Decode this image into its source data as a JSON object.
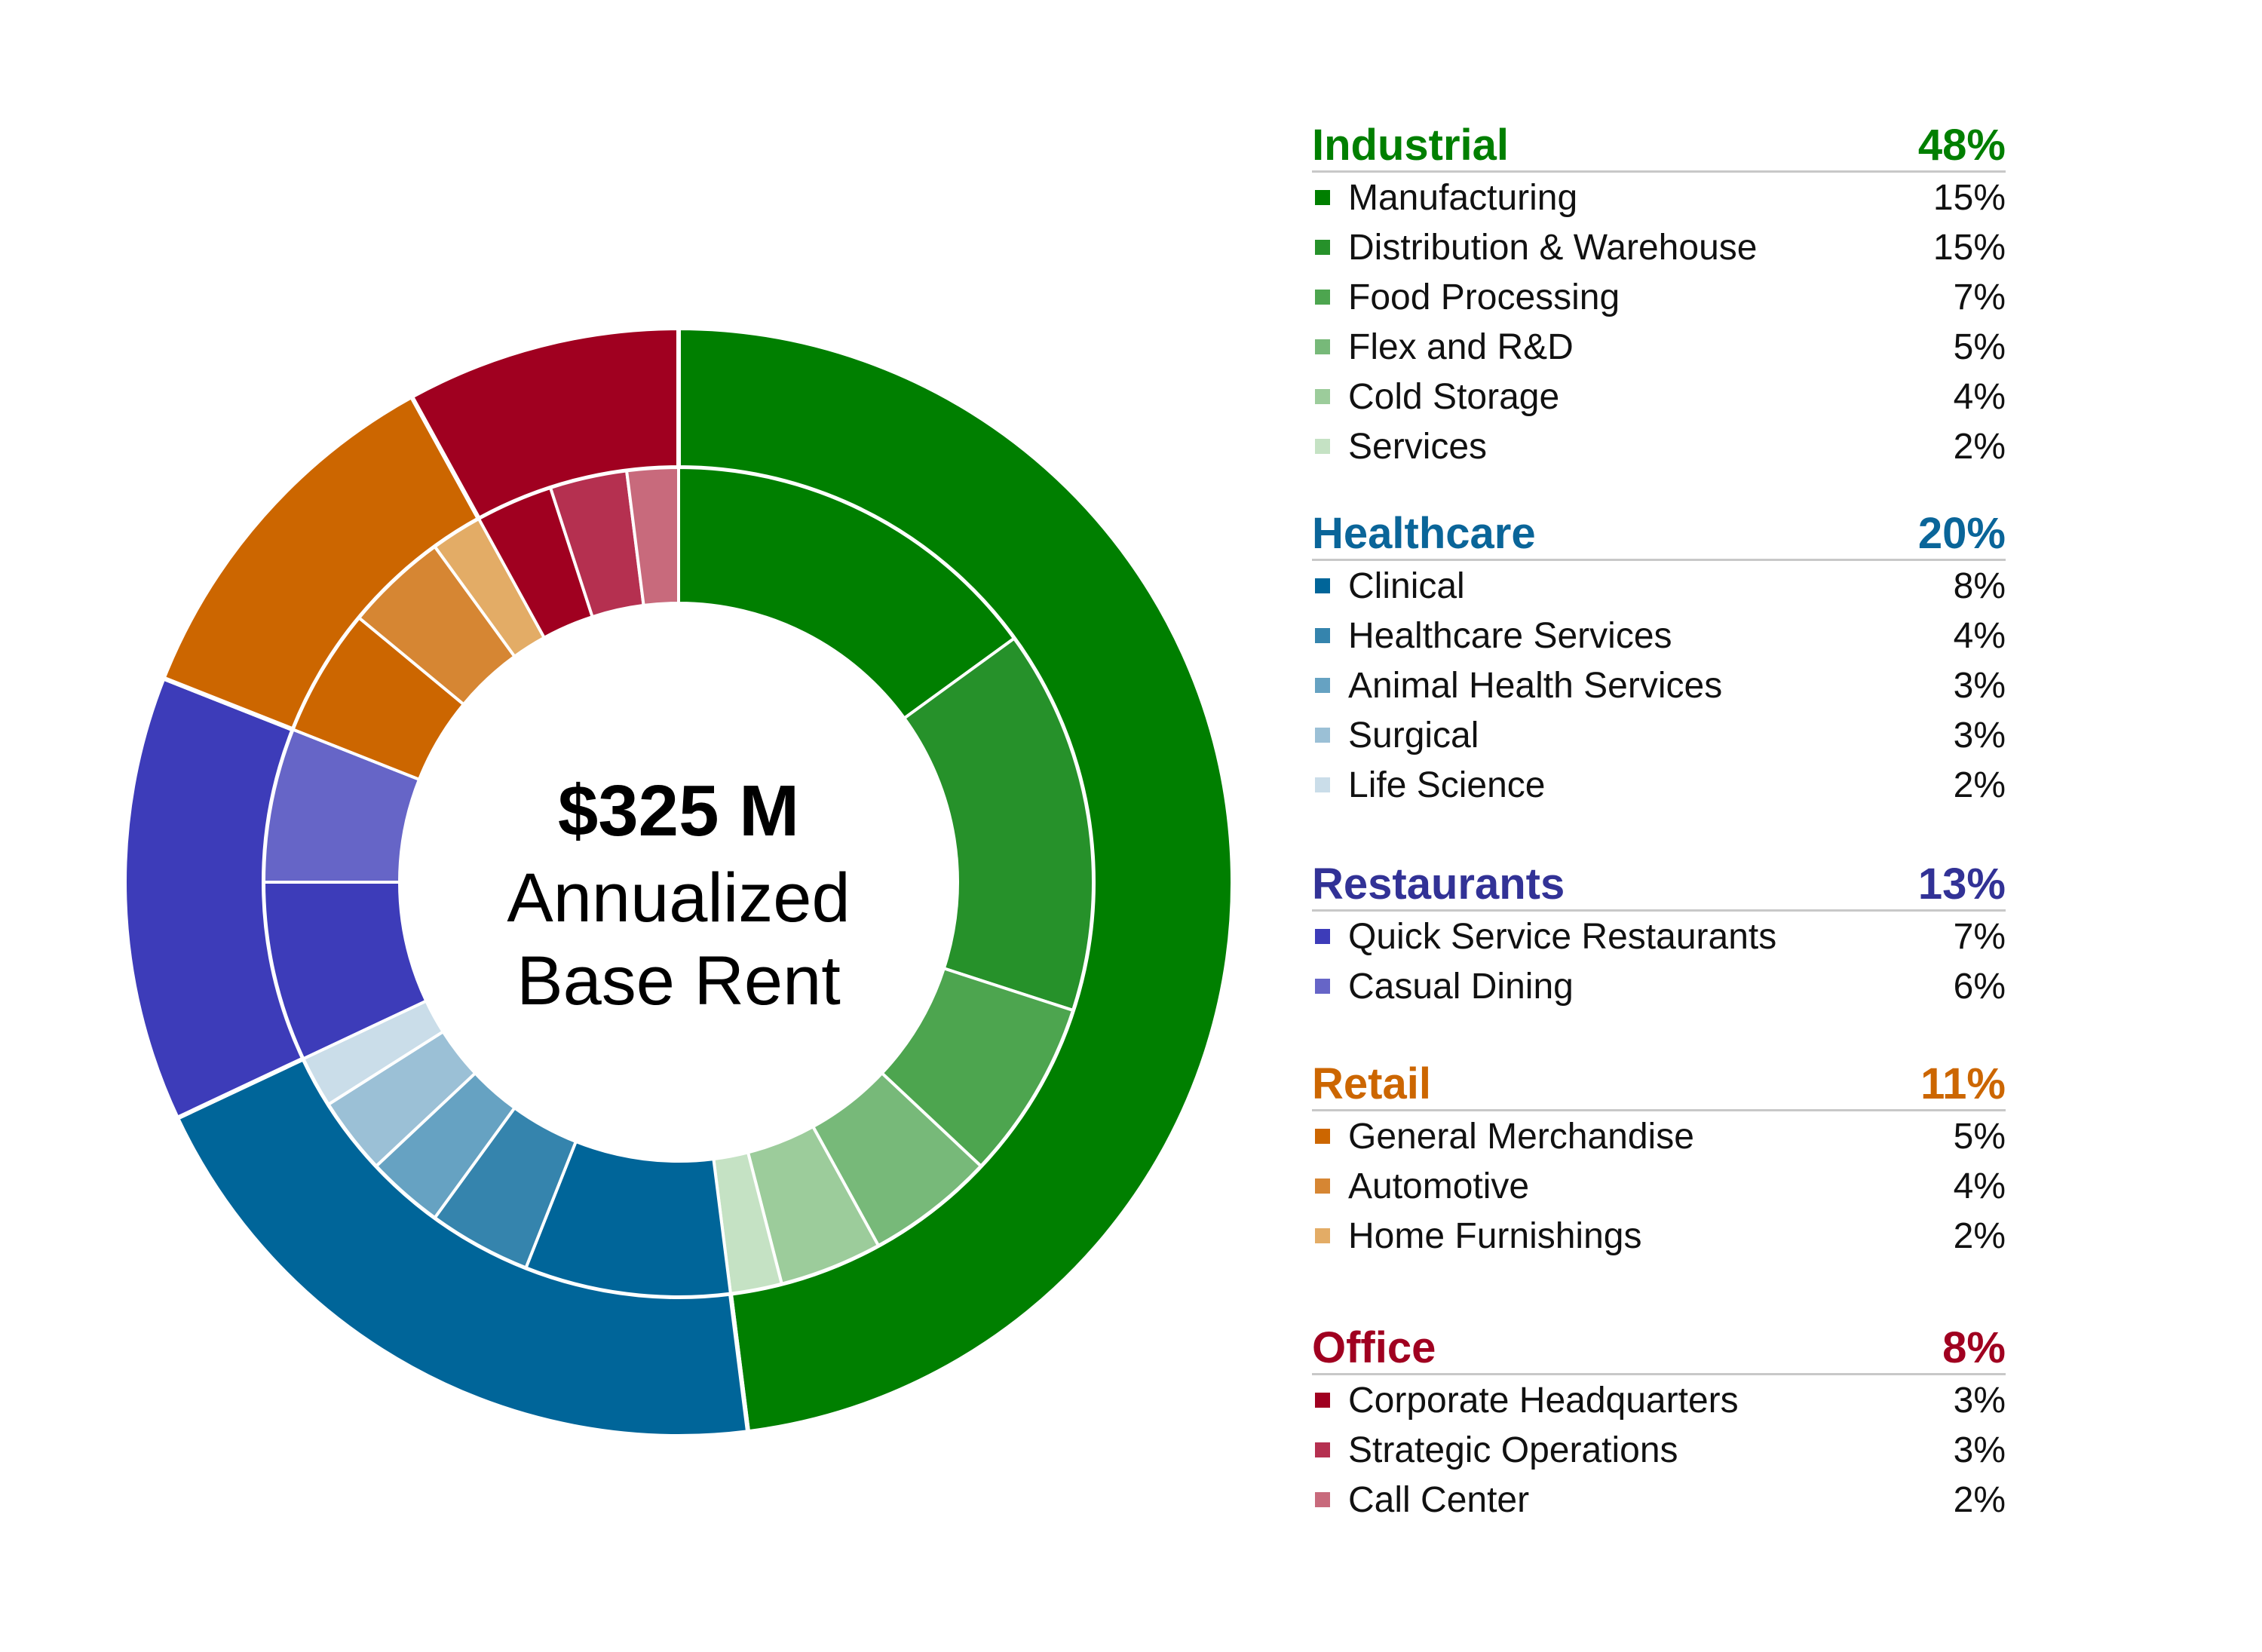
{
  "center": {
    "amount": "$325 M",
    "caption_line1": "Annualized",
    "caption_line2": "Base Rent"
  },
  "chart_data": {
    "type": "pie",
    "variant": "nested-donut",
    "title": "",
    "groups": [
      {
        "name": "Industrial",
        "value": 48,
        "label": "48%",
        "color": "#007f00",
        "items": [
          {
            "name": "Manufacturing",
            "value": 15,
            "label": "15%",
            "color": "#007f00"
          },
          {
            "name": "Distribution & Warehouse",
            "value": 15,
            "label": "15%",
            "color": "#26912a"
          },
          {
            "name": "Food Processing",
            "value": 7,
            "label": "7%",
            "color": "#4da54f"
          },
          {
            "name": "Flex and R&D",
            "value": 5,
            "label": "5%",
            "color": "#77b979"
          },
          {
            "name": "Cold Storage",
            "value": 4,
            "label": "4%",
            "color": "#9ccc9b"
          },
          {
            "name": "Services",
            "value": 2,
            "label": "2%",
            "color": "#c5e2c4"
          }
        ]
      },
      {
        "name": "Healthcare",
        "value": 20,
        "label": "20%",
        "color": "#006599",
        "items": [
          {
            "name": "Clinical",
            "value": 8,
            "label": "8%",
            "color": "#006599"
          },
          {
            "name": "Healthcare Services",
            "value": 4,
            "label": "4%",
            "color": "#3584ad"
          },
          {
            "name": "Animal Health Services",
            "value": 3,
            "label": "3%",
            "color": "#66a2c2"
          },
          {
            "name": "Surgical",
            "value": 3,
            "label": "3%",
            "color": "#9bc0d6"
          },
          {
            "name": "Life Science",
            "value": 2,
            "label": "2%",
            "color": "#cadde9"
          }
        ]
      },
      {
        "name": "Restaurants",
        "value": 13,
        "label": "13%",
        "color": "#3d3cb9",
        "items": [
          {
            "name": "Quick Service Restaurants",
            "value": 7,
            "label": "7%",
            "color": "#3d3cb9"
          },
          {
            "name": "Casual Dining",
            "value": 6,
            "label": "6%",
            "color": "#6665c7"
          }
        ]
      },
      {
        "name": "Retail",
        "value": 11,
        "label": "11%",
        "color": "#cc6600",
        "items": [
          {
            "name": "General Merchandise",
            "value": 5,
            "label": "5%",
            "color": "#cc6600"
          },
          {
            "name": "Automotive",
            "value": 4,
            "label": "4%",
            "color": "#d68633"
          },
          {
            "name": "Home Furnishings",
            "value": 2,
            "label": "2%",
            "color": "#e3ac66"
          }
        ]
      },
      {
        "name": "Office",
        "value": 8,
        "label": "8%",
        "color": "#a00020",
        "items": [
          {
            "name": "Corporate Headquarters",
            "value": 3,
            "label": "3%",
            "color": "#a00020"
          },
          {
            "name": "Strategic Operations",
            "value": 3,
            "label": "3%",
            "color": "#b53050"
          },
          {
            "name": "Call Center",
            "value": 2,
            "label": "2%",
            "color": "#c86a7c"
          }
        ]
      }
    ]
  },
  "colors": {
    "divider": "#c8c8c8",
    "slice_border": "#ffffff",
    "healthcare_heading": "#0a6599",
    "restaurants_heading": "#323296",
    "retail_heading": "#cc6600",
    "office_heading": "#a00020",
    "industrial_heading": "#007f00"
  }
}
